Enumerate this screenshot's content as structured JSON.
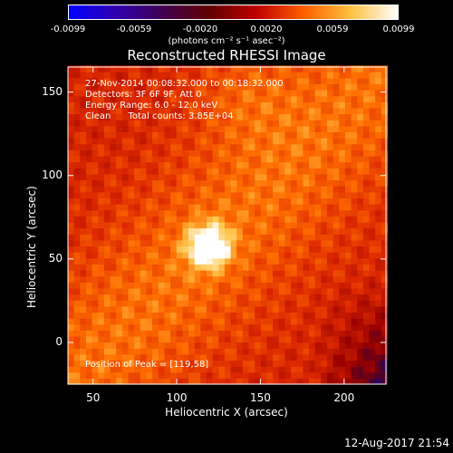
{
  "colorbar": {
    "ticks": [
      "-0.0099",
      "-0.0059",
      "-0.0020",
      "0.0020",
      "0.0059",
      "0.0099"
    ],
    "unit_label": "(photons cm⁻² s⁻¹ asec⁻²)",
    "colors": [
      "#0000ff",
      "#3000b0",
      "#400050",
      "#600000",
      "#c00000",
      "#ff6000",
      "#ffc040",
      "#ffffff"
    ]
  },
  "chart_data": {
    "type": "heatmap",
    "title": "Reconstructed RHESSI Image",
    "xlabel": "Heliocentric X (arcsec)",
    "ylabel": "Heliocentric Y (arcsec)",
    "xlim": [
      35,
      225
    ],
    "ylim": [
      -25,
      165
    ],
    "xticks": [
      "50",
      "100",
      "150",
      "200"
    ],
    "xtick_values": [
      50,
      100,
      150,
      200
    ],
    "yticks": [
      "0",
      "50",
      "100",
      "150"
    ],
    "ytick_values": [
      0,
      50,
      100,
      150
    ],
    "peak": {
      "x": 119,
      "y": 58
    },
    "annotations": [
      "27-Nov-2014 00:08:32.000 to 00:18:32.000",
      "Detectors: 3F 6F 9F, Att 0",
      "Energy Range: 6.0 - 12.0 keV",
      "Clean      Total counts: 3.85E+04"
    ],
    "peak_label": "Position of Peak = [119,58]"
  },
  "datestamp": "12-Aug-2017 21:54"
}
